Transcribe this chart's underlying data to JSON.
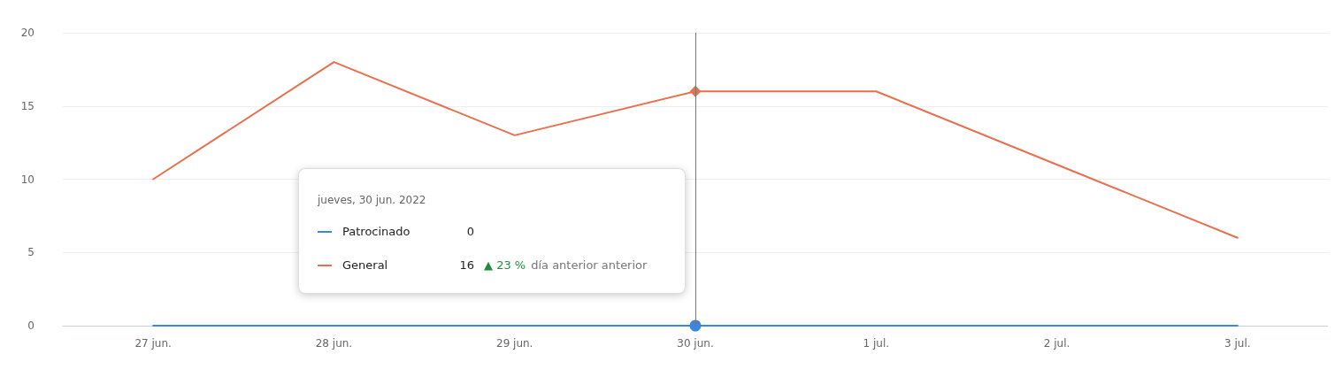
{
  "chart_data": {
    "type": "line",
    "categories": [
      "27 jun.",
      "28 jun.",
      "29 jun.",
      "30 jun.",
      "1 jul.",
      "2 jul.",
      "3 jul."
    ],
    "series": [
      {
        "name": "Patrocinado",
        "color": "#3b86e0",
        "values": [
          0,
          0,
          0,
          0,
          0,
          0,
          0
        ]
      },
      {
        "name": "General",
        "color": "#e8704f",
        "values": [
          10,
          18,
          13,
          16,
          16,
          11,
          6
        ]
      }
    ],
    "ylim": [
      0,
      20
    ],
    "yticks": [
      0,
      5,
      10,
      15,
      20
    ],
    "grid": "y",
    "legend": "bottom left",
    "marker": "none",
    "line_style": "solid",
    "ref_lines": [
      {
        "axis": "x",
        "value": "30 jun.",
        "color": "#777777"
      }
    ],
    "annotations": [
      "jueves, 30 jun. 2022",
      "0",
      "16",
      "▲ 23 %",
      "día anterior anterior"
    ]
  }
}
